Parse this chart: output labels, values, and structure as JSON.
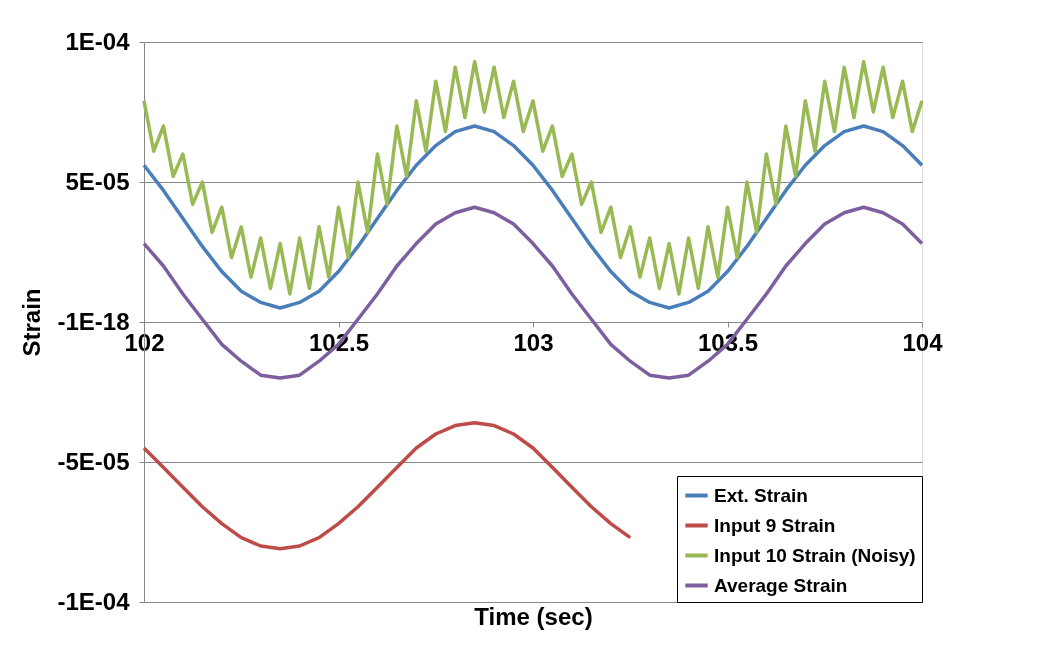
{
  "chart_data": {
    "type": "line",
    "xlabel": "Time (sec)",
    "ylabel": "Strain",
    "x": [
      102,
      102.05,
      102.1,
      102.15,
      102.2,
      102.25,
      102.3,
      102.35,
      102.4,
      102.45,
      102.5,
      102.55,
      102.6,
      102.65,
      102.7,
      102.75,
      102.8,
      102.85,
      102.9,
      102.95,
      103,
      103.05,
      103.1,
      103.15,
      103.2,
      103.25,
      103.3,
      103.35,
      103.4,
      103.45,
      103.5,
      103.55,
      103.6,
      103.65,
      103.7,
      103.75,
      103.8,
      103.85,
      103.9,
      103.95,
      104
    ],
    "series": [
      {
        "name": "Ext. Strain",
        "color": "#4a7ebb",
        "values": [
          5.6e-05,
          4.7e-05,
          3.7e-05,
          2.7e-05,
          1.8e-05,
          1.1e-05,
          7e-06,
          5e-06,
          7e-06,
          1.1e-05,
          1.8e-05,
          2.7e-05,
          3.7e-05,
          4.7e-05,
          5.6e-05,
          6.3e-05,
          6.8e-05,
          7e-05,
          6.8e-05,
          6.3e-05,
          5.6e-05,
          4.7e-05,
          3.7e-05,
          2.7e-05,
          1.8e-05,
          1.1e-05,
          7e-06,
          5e-06,
          7e-06,
          1.1e-05,
          1.8e-05,
          2.7e-05,
          3.7e-05,
          4.7e-05,
          5.6e-05,
          6.3e-05,
          6.8e-05,
          7e-05,
          6.8e-05,
          6.3e-05,
          5.6e-05
        ]
      },
      {
        "name": "Input 9 Strain",
        "color": "#be4b48",
        "values": [
          -4.5e-05,
          -5.2e-05,
          -5.9e-05,
          -6.6e-05,
          -7.2e-05,
          -7.7e-05,
          -8e-05,
          -8.1e-05,
          -8e-05,
          -7.7e-05,
          -7.2e-05,
          -6.6e-05,
          -5.9e-05,
          -5.2e-05,
          -4.5e-05,
          -4e-05,
          -3.7e-05,
          -3.6e-05,
          -3.7e-05,
          -4e-05,
          -4.5e-05,
          -5.2e-05,
          -5.9e-05,
          -6.6e-05,
          -7.2e-05,
          -7.7e-05,
          null,
          null,
          null,
          null,
          null,
          null,
          null,
          null,
          null,
          null,
          null,
          null,
          null,
          null,
          null
        ]
      },
      {
        "name": "Input 10 Strain (Noisy)",
        "color": "#98b954",
        "x": [
          102,
          102.025,
          102.05,
          102.075,
          102.1,
          102.125,
          102.15,
          102.175,
          102.2,
          102.225,
          102.25,
          102.275,
          102.3,
          102.325,
          102.35,
          102.375,
          102.4,
          102.425,
          102.45,
          102.475,
          102.5,
          102.525,
          102.55,
          102.575,
          102.6,
          102.625,
          102.65,
          102.675,
          102.7,
          102.725,
          102.75,
          102.775,
          102.8,
          102.825,
          102.85,
          102.875,
          102.9,
          102.925,
          102.95,
          102.975,
          103,
          103.025,
          103.05,
          103.075,
          103.1,
          103.125,
          103.15,
          103.175,
          103.2,
          103.225,
          103.25,
          103.275,
          103.3,
          103.325,
          103.35,
          103.375,
          103.4,
          103.425,
          103.45,
          103.475,
          103.5,
          103.525,
          103.55,
          103.575,
          103.6,
          103.625,
          103.65,
          103.675,
          103.7,
          103.725,
          103.75,
          103.775,
          103.8,
          103.825,
          103.85,
          103.875,
          103.9,
          103.925,
          103.95,
          103.975,
          104
        ],
        "values": [
          7.9e-05,
          6.1e-05,
          7e-05,
          5.2e-05,
          6e-05,
          4.2e-05,
          5e-05,
          3.2e-05,
          4.1e-05,
          2.3e-05,
          3.4e-05,
          1.6e-05,
          3e-05,
          1.2e-05,
          2.8e-05,
          1e-05,
          3e-05,
          1.2e-05,
          3.4e-05,
          1.6e-05,
          4.1e-05,
          2.3e-05,
          5e-05,
          3.2e-05,
          6e-05,
          4.2e-05,
          7e-05,
          5.2e-05,
          7.9e-05,
          6.1e-05,
          8.6e-05,
          6.8e-05,
          9.1e-05,
          7.3e-05,
          9.3e-05,
          7.5e-05,
          9.1e-05,
          7.3e-05,
          8.6e-05,
          6.8e-05,
          7.9e-05,
          6.1e-05,
          7e-05,
          5.2e-05,
          6e-05,
          4.2e-05,
          5e-05,
          3.2e-05,
          4.1e-05,
          2.3e-05,
          3.4e-05,
          1.6e-05,
          3e-05,
          1.2e-05,
          2.8e-05,
          1e-05,
          3e-05,
          1.2e-05,
          3.4e-05,
          1.6e-05,
          4.1e-05,
          2.3e-05,
          5e-05,
          3.2e-05,
          6e-05,
          4.2e-05,
          7e-05,
          5.2e-05,
          7.9e-05,
          6.1e-05,
          8.6e-05,
          6.8e-05,
          9.1e-05,
          7.3e-05,
          9.3e-05,
          7.5e-05,
          9.1e-05,
          7.3e-05,
          8.6e-05,
          6.8e-05,
          7.9e-05
        ]
      },
      {
        "name": "Average Strain",
        "color": "#7d5fa0",
        "values": [
          2.8e-05,
          2e-05,
          1e-05,
          1e-06,
          -8e-06,
          -1.4e-05,
          -1.9e-05,
          -2e-05,
          -1.9e-05,
          -1.4e-05,
          -8e-06,
          1e-06,
          1e-05,
          2e-05,
          2.8e-05,
          3.5e-05,
          3.9e-05,
          4.1e-05,
          3.9e-05,
          3.5e-05,
          2.8e-05,
          2e-05,
          1e-05,
          1e-06,
          -8e-06,
          -1.4e-05,
          -1.9e-05,
          -2e-05,
          -1.9e-05,
          -1.4e-05,
          -8e-06,
          1e-06,
          1e-05,
          2e-05,
          2.8e-05,
          3.5e-05,
          3.9e-05,
          4.1e-05,
          3.9e-05,
          3.5e-05,
          2.8e-05
        ]
      }
    ],
    "xlim": [
      102,
      104
    ],
    "xticks": [
      102,
      102.5,
      103,
      103.5,
      104
    ],
    "ylim": [
      -0.0001,
      0.0001
    ],
    "yticks": [
      {
        "value": 0.0001,
        "label": "1E-04"
      },
      {
        "value": 5e-05,
        "label": "5E-05"
      },
      {
        "value": 0,
        "label": "-1E-18"
      },
      {
        "value": -5e-05,
        "label": "-5E-05"
      },
      {
        "value": -0.0001,
        "label": "-1E-04"
      }
    ],
    "grid": "y",
    "legend": "bottom right",
    "marker": "none",
    "line_style": "solid"
  }
}
